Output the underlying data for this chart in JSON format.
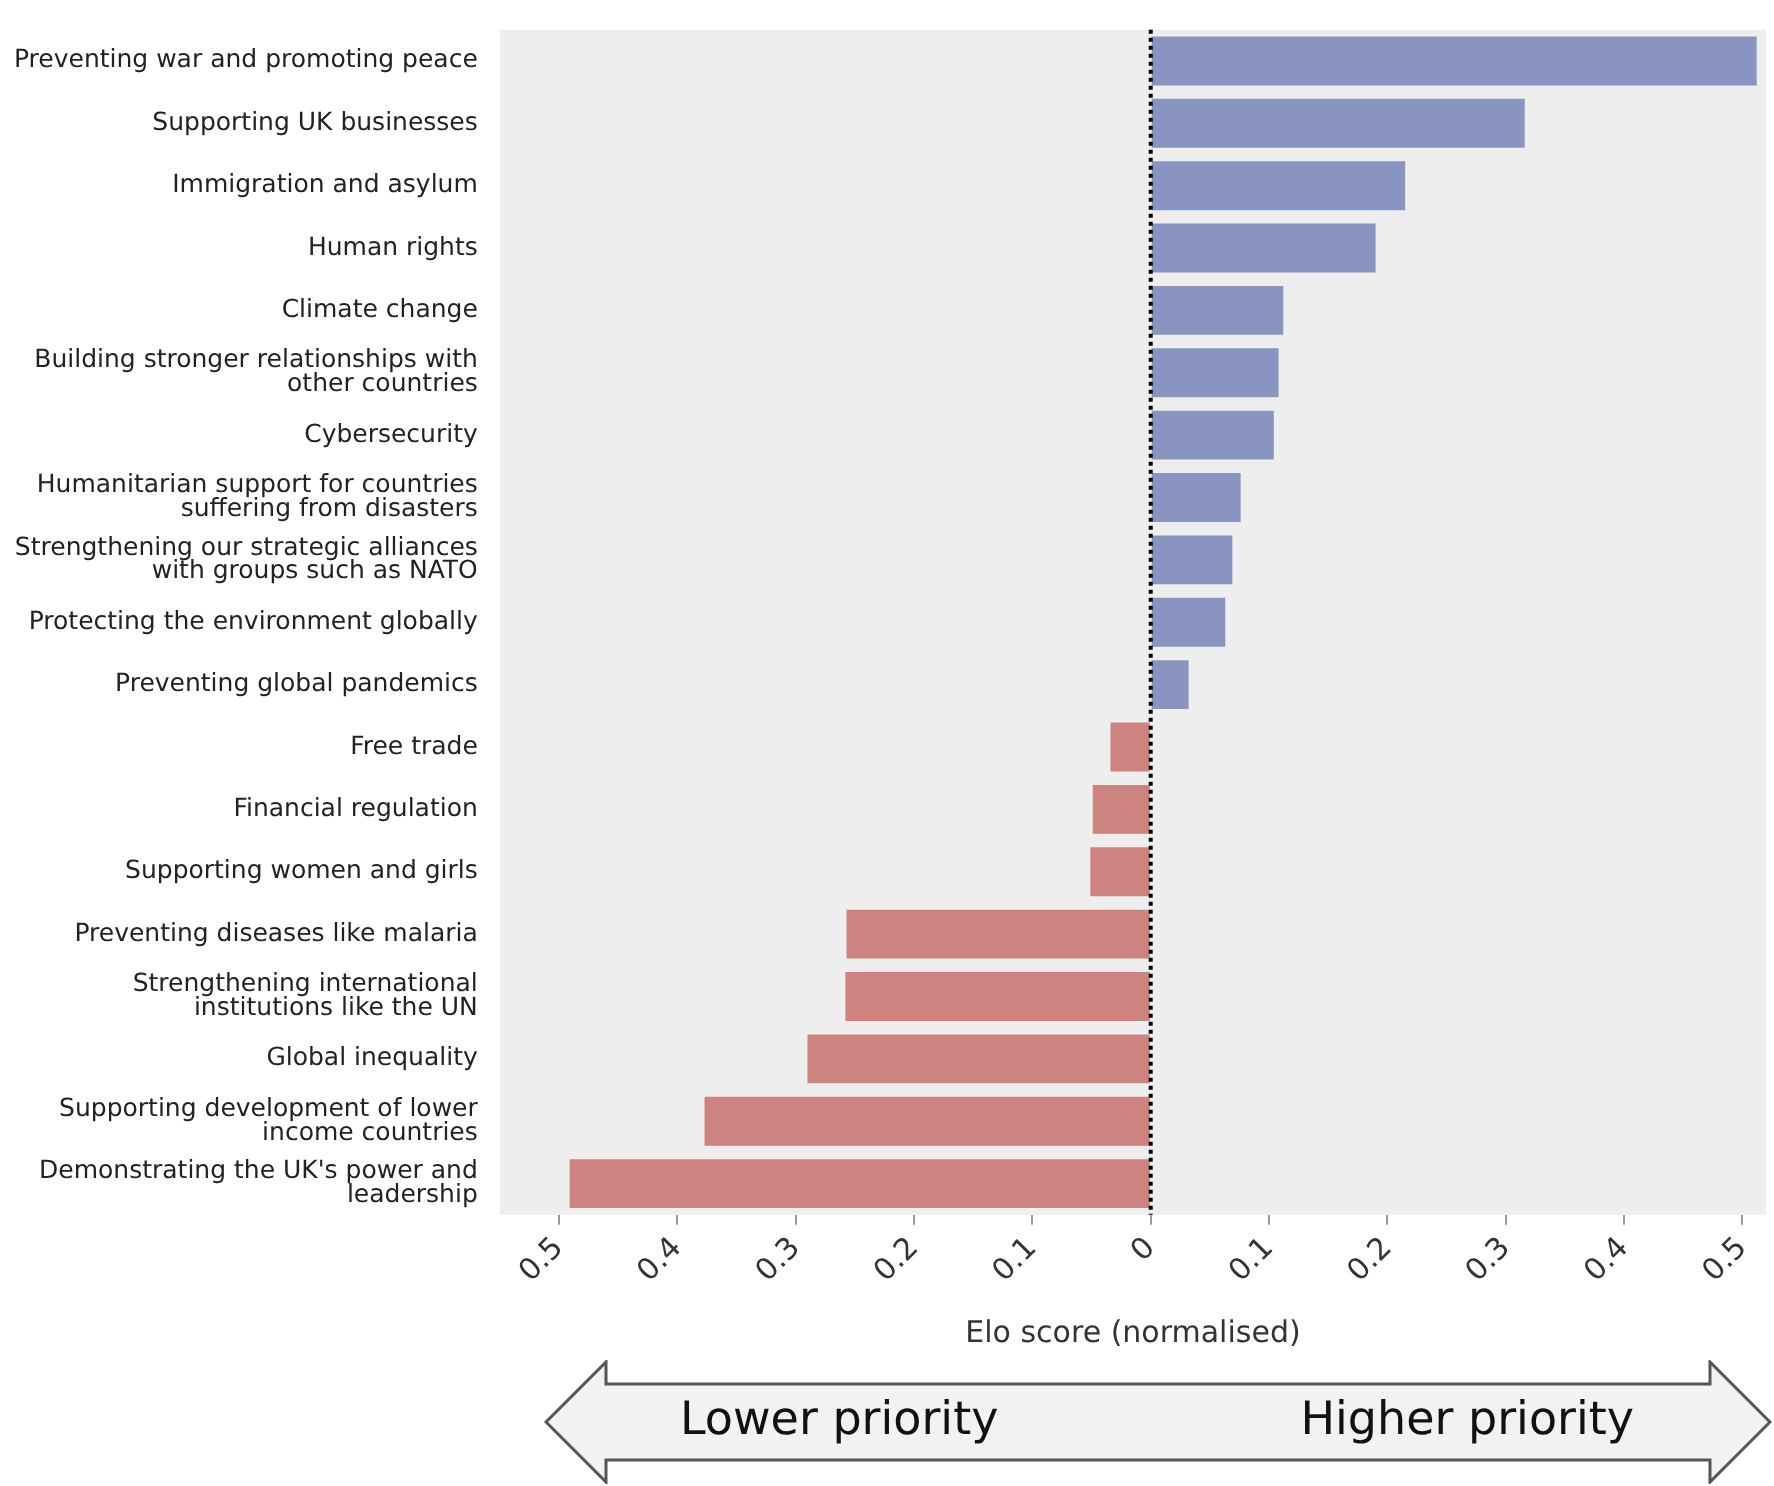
{
  "chart_data": {
    "type": "bar",
    "orientation": "horizontal",
    "xlabel": "Elo score (normalised)",
    "categories": [
      "Preventing war and promoting peace",
      "Supporting UK businesses",
      "Immigration and asylum",
      "Human rights",
      "Climate change",
      "Building stronger relationships with other countries",
      "Cybersecurity",
      "Humanitarian support for countries suffering from disasters",
      "Strengthening our strategic alliances with groups such as NATO",
      "Protecting the environment globally",
      "Preventing global pandemics",
      "Free trade",
      "Financial regulation",
      "Supporting women and girls",
      "Preventing diseases like malaria",
      "Strengthening international institutions like the UN",
      "Global inequality",
      "Supporting development of lower income countries",
      "Demonstrating the UK's power and leadership"
    ],
    "values": [
      0.512,
      0.316,
      0.215,
      0.19,
      0.112,
      0.108,
      0.104,
      0.076,
      0.069,
      0.063,
      0.032,
      -0.034,
      -0.049,
      -0.051,
      -0.257,
      -0.258,
      -0.29,
      -0.377,
      -0.491
    ],
    "colors": [
      "#8a94c0",
      "#8a94c0",
      "#8a94c0",
      "#8a94c0",
      "#8a94c0",
      "#8a94c0",
      "#8a94c0",
      "#8a94c0",
      "#8a94c0",
      "#8a94c0",
      "#8a94c0",
      "#cd8380",
      "#cd8380",
      "#cd8380",
      "#cd8380",
      "#cd8380",
      "#cd8380",
      "#cd8380",
      "#cd8380"
    ],
    "xlim": [
      -0.55,
      0.52
    ],
    "xticks": [
      {
        "value": -0.5,
        "label": "0.5"
      },
      {
        "value": -0.4,
        "label": "0.4"
      },
      {
        "value": -0.3,
        "label": "0.3"
      },
      {
        "value": -0.2,
        "label": "0.2"
      },
      {
        "value": -0.1,
        "label": "0.1"
      },
      0,
      0.1,
      0.2,
      0.3,
      0.4,
      0.5
    ],
    "ref_lines": [
      {
        "axis": "x",
        "value": 0,
        "color": "#000000",
        "line_style": "dotted"
      }
    ],
    "grid": false,
    "legend": false,
    "annotations": [
      "Lower priority",
      "Higher priority"
    ]
  }
}
